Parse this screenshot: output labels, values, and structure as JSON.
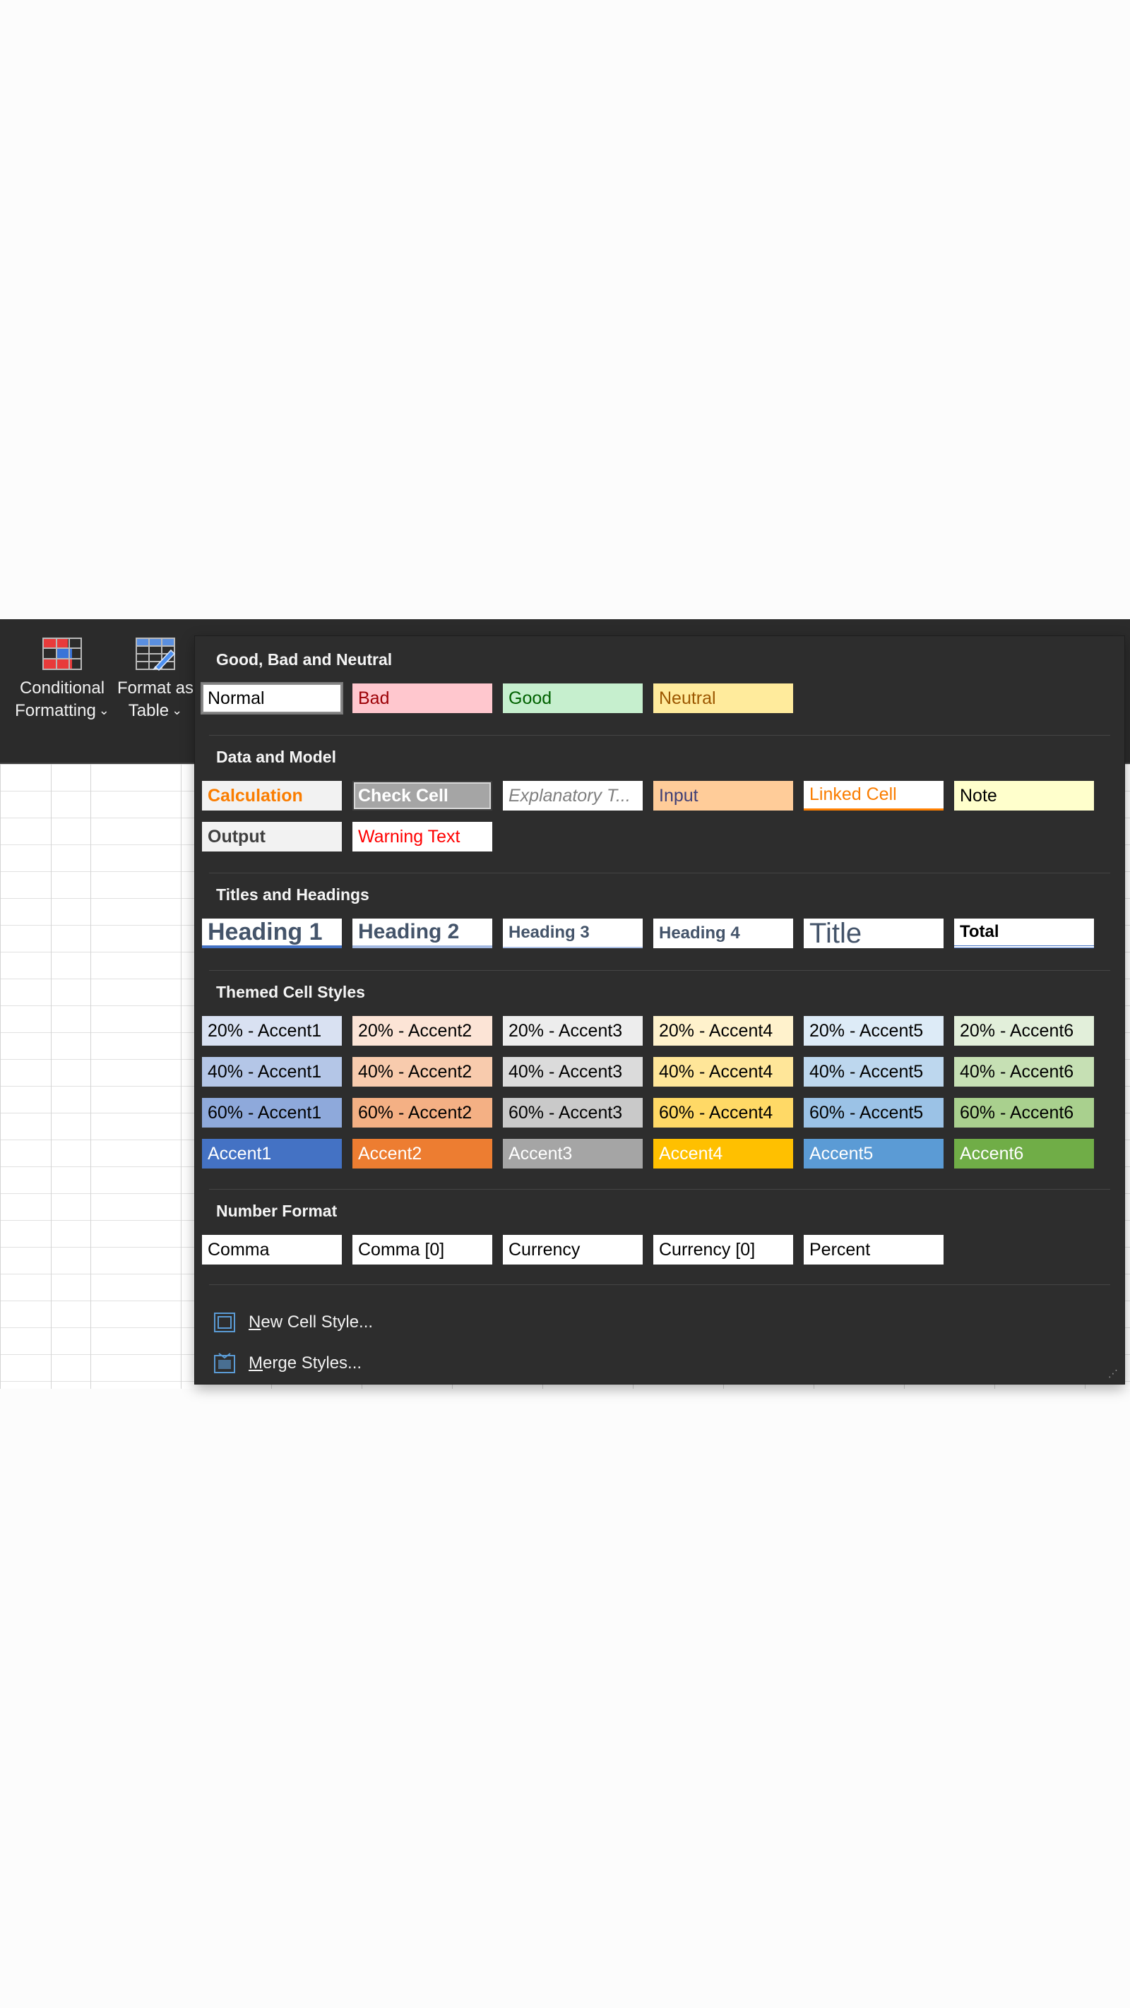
{
  "ribbon": {
    "conditional_formatting": {
      "line1": "Conditional",
      "line2": "Formatting",
      "icon": "conditional-formatting-icon"
    },
    "format_as_table": {
      "line1": "Format as",
      "line2": "Table",
      "icon": "format-as-table-icon"
    },
    "chevron": "⌄"
  },
  "gallery": {
    "sections": [
      {
        "title": "Good, Bad and Neutral",
        "styles": [
          {
            "label": "Normal",
            "bg": "#ffffff",
            "fg": "#000000",
            "selected": true
          },
          {
            "label": "Bad",
            "bg": "#ffc7ce",
            "fg": "#9c0006"
          },
          {
            "label": "Good",
            "bg": "#c6efce",
            "fg": "#006100"
          },
          {
            "label": "Neutral",
            "bg": "#ffeb9c",
            "fg": "#9c5700"
          }
        ]
      },
      {
        "title": "Data and Model",
        "styles": [
          {
            "label": "Calculation",
            "bg": "#f2f2f2",
            "fg": "#fa7d00",
            "bold": true
          },
          {
            "label": "Check Cell",
            "bg": "#a5a5a5",
            "fg": "#ffffff",
            "bold": true,
            "double_border": true
          },
          {
            "label": "Explanatory T...",
            "bg": "#ffffff",
            "fg": "#7f7f7f",
            "italic": true
          },
          {
            "label": "Input",
            "bg": "#ffcc99",
            "fg": "#3f3f76"
          },
          {
            "label": "Linked Cell",
            "bg": "#ffffff",
            "fg": "#fa7d00",
            "underline_color": "#ff8001"
          },
          {
            "label": "Note",
            "bg": "#ffffcc",
            "fg": "#000000"
          },
          {
            "label": "Output",
            "bg": "#f2f2f2",
            "fg": "#3f3f3f",
            "bold": true
          },
          {
            "label": "Warning Text",
            "bg": "#ffffff",
            "fg": "#ff0000"
          }
        ]
      },
      {
        "title": "Titles and Headings",
        "styles": [
          {
            "label": "Heading 1",
            "bg": "#ffffff",
            "fg": "#44546a",
            "bold": true,
            "size": 34,
            "underline_color": "#4472c4",
            "underline_w": 4
          },
          {
            "label": "Heading 2",
            "bg": "#ffffff",
            "fg": "#44546a",
            "bold": true,
            "size": 30,
            "underline_color": "#a2b8e1",
            "underline_w": 4
          },
          {
            "label": "Heading 3",
            "bg": "#ffffff",
            "fg": "#44546a",
            "bold": true,
            "size": 24,
            "underline_color": "#acc0e6",
            "underline_w": 2
          },
          {
            "label": "Heading 4",
            "bg": "#ffffff",
            "fg": "#44546a",
            "bold": true,
            "size": 24
          },
          {
            "label": "Title",
            "bg": "#ffffff",
            "fg": "#44546a",
            "size": 40,
            "light": true
          },
          {
            "label": "Total",
            "bg": "#ffffff",
            "fg": "#000000",
            "bold": true,
            "size": 24,
            "double_underline": "#4472c4"
          }
        ]
      },
      {
        "title": "Themed Cell Styles",
        "styles": [
          {
            "label": "20% - Accent1",
            "bg": "#d9e1f2",
            "fg": "#000000"
          },
          {
            "label": "20% - Accent2",
            "bg": "#fce4d6",
            "fg": "#000000"
          },
          {
            "label": "20% - Accent3",
            "bg": "#ededed",
            "fg": "#000000"
          },
          {
            "label": "20% - Accent4",
            "bg": "#fff2cc",
            "fg": "#000000"
          },
          {
            "label": "20% - Accent5",
            "bg": "#ddebf7",
            "fg": "#000000"
          },
          {
            "label": "20% - Accent6",
            "bg": "#e2efda",
            "fg": "#000000"
          },
          {
            "label": "40% - Accent1",
            "bg": "#b4c6e7",
            "fg": "#000000"
          },
          {
            "label": "40% - Accent2",
            "bg": "#f8cbad",
            "fg": "#000000"
          },
          {
            "label": "40% - Accent3",
            "bg": "#dbdbdb",
            "fg": "#000000"
          },
          {
            "label": "40% - Accent4",
            "bg": "#ffe699",
            "fg": "#000000"
          },
          {
            "label": "40% - Accent5",
            "bg": "#bdd7ee",
            "fg": "#000000"
          },
          {
            "label": "40% - Accent6",
            "bg": "#c6e0b4",
            "fg": "#000000"
          },
          {
            "label": "60% - Accent1",
            "bg": "#8ea9db",
            "fg": "#000000"
          },
          {
            "label": "60% - Accent2",
            "bg": "#f4b084",
            "fg": "#000000"
          },
          {
            "label": "60% - Accent3",
            "bg": "#c9c9c9",
            "fg": "#000000"
          },
          {
            "label": "60% - Accent4",
            "bg": "#ffd966",
            "fg": "#000000"
          },
          {
            "label": "60% - Accent5",
            "bg": "#9bc2e6",
            "fg": "#000000"
          },
          {
            "label": "60% - Accent6",
            "bg": "#a9d08e",
            "fg": "#000000"
          },
          {
            "label": "Accent1",
            "bg": "#4472c4",
            "fg": "#ffffff"
          },
          {
            "label": "Accent2",
            "bg": "#ed7d31",
            "fg": "#ffffff"
          },
          {
            "label": "Accent3",
            "bg": "#a5a5a5",
            "fg": "#ffffff"
          },
          {
            "label": "Accent4",
            "bg": "#ffc000",
            "fg": "#ffffff"
          },
          {
            "label": "Accent5",
            "bg": "#5b9bd5",
            "fg": "#ffffff"
          },
          {
            "label": "Accent6",
            "bg": "#70ad47",
            "fg": "#ffffff"
          }
        ]
      },
      {
        "title": "Number Format",
        "styles": [
          {
            "label": "Comma",
            "bg": "#ffffff",
            "fg": "#000000"
          },
          {
            "label": "Comma [0]",
            "bg": "#ffffff",
            "fg": "#000000"
          },
          {
            "label": "Currency",
            "bg": "#ffffff",
            "fg": "#000000"
          },
          {
            "label": "Currency [0]",
            "bg": "#ffffff",
            "fg": "#000000"
          },
          {
            "label": "Percent",
            "bg": "#ffffff",
            "fg": "#000000"
          }
        ]
      }
    ],
    "menu": [
      {
        "underlined": "N",
        "rest": "ew Cell Style...",
        "icon": "new-cell-style-icon"
      },
      {
        "underlined": "M",
        "rest": "erge Styles...",
        "icon": "merge-styles-icon"
      }
    ]
  }
}
